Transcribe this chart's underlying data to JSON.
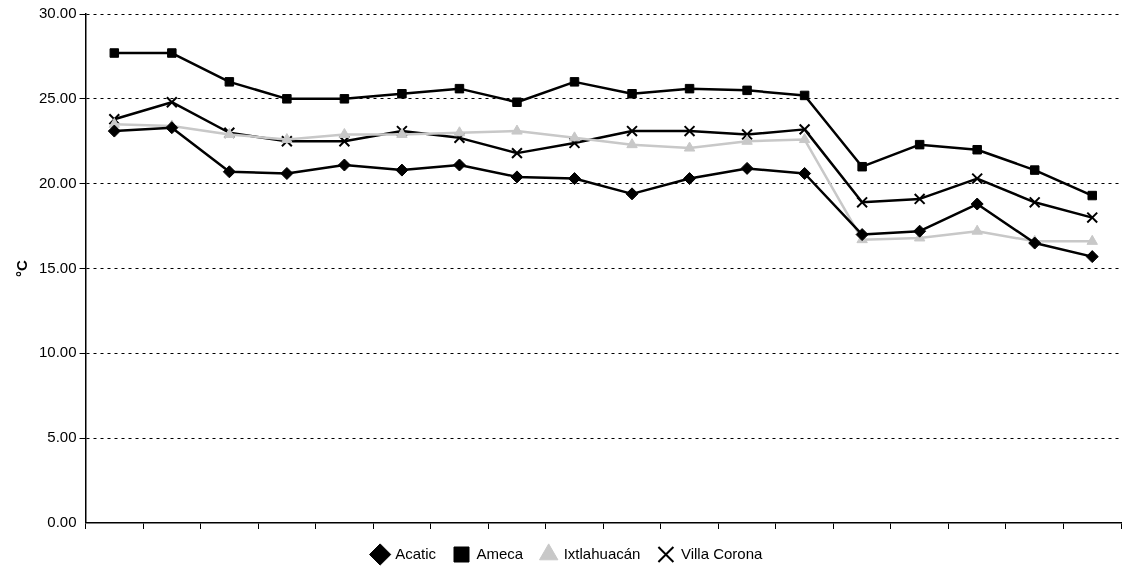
{
  "chart_data": {
    "type": "line",
    "ylabel": "°C",
    "categories": [
      null,
      null,
      null,
      null,
      null,
      null,
      null,
      null,
      null,
      null,
      null,
      null,
      null,
      null,
      null,
      null,
      null,
      null
    ],
    "series": [
      {
        "name": "Acatic",
        "color": "#000000",
        "marker": "diamond",
        "values": [
          23.1,
          23.3,
          20.7,
          20.6,
          21.1,
          20.8,
          21.1,
          20.4,
          20.3,
          19.4,
          20.3,
          20.9,
          20.6,
          17.0,
          17.2,
          18.8,
          16.5,
          15.7
        ]
      },
      {
        "name": "Ameca",
        "color": "#000000",
        "marker": "square",
        "values": [
          27.7,
          27.7,
          26.0,
          25.0,
          25.0,
          25.3,
          25.6,
          24.8,
          26.0,
          25.3,
          25.6,
          25.5,
          25.2,
          21.0,
          22.3,
          22.0,
          20.8,
          19.3
        ]
      },
      {
        "name": "Ixtlahuacán",
        "color": "#c8c8c8",
        "marker": "triangle",
        "values": [
          23.5,
          23.4,
          22.9,
          22.6,
          22.9,
          22.9,
          23.0,
          23.1,
          22.7,
          22.3,
          22.1,
          22.5,
          22.6,
          16.7,
          16.8,
          17.2,
          16.6,
          16.6
        ]
      },
      {
        "name": "Villa Corona",
        "color": "#000000",
        "marker": "cross",
        "values": [
          23.8,
          24.8,
          23.0,
          22.5,
          22.5,
          23.1,
          22.7,
          21.8,
          22.4,
          23.1,
          23.1,
          22.9,
          23.2,
          18.9,
          19.1,
          20.3,
          18.9,
          18.0
        ]
      }
    ],
    "ylim": [
      0,
      30
    ],
    "yticks": [
      {
        "value": 0,
        "label": "0.00"
      },
      {
        "value": 5,
        "label": "5.00"
      },
      {
        "value": 10,
        "label": "10.00"
      },
      {
        "value": 15,
        "label": "15.00"
      },
      {
        "value": 20,
        "label": "20.00"
      },
      {
        "value": 25,
        "label": "25.00"
      },
      {
        "value": 30,
        "label": "30.00"
      }
    ],
    "grid": "y",
    "legend": "bottom",
    "tick_labels": "y"
  }
}
